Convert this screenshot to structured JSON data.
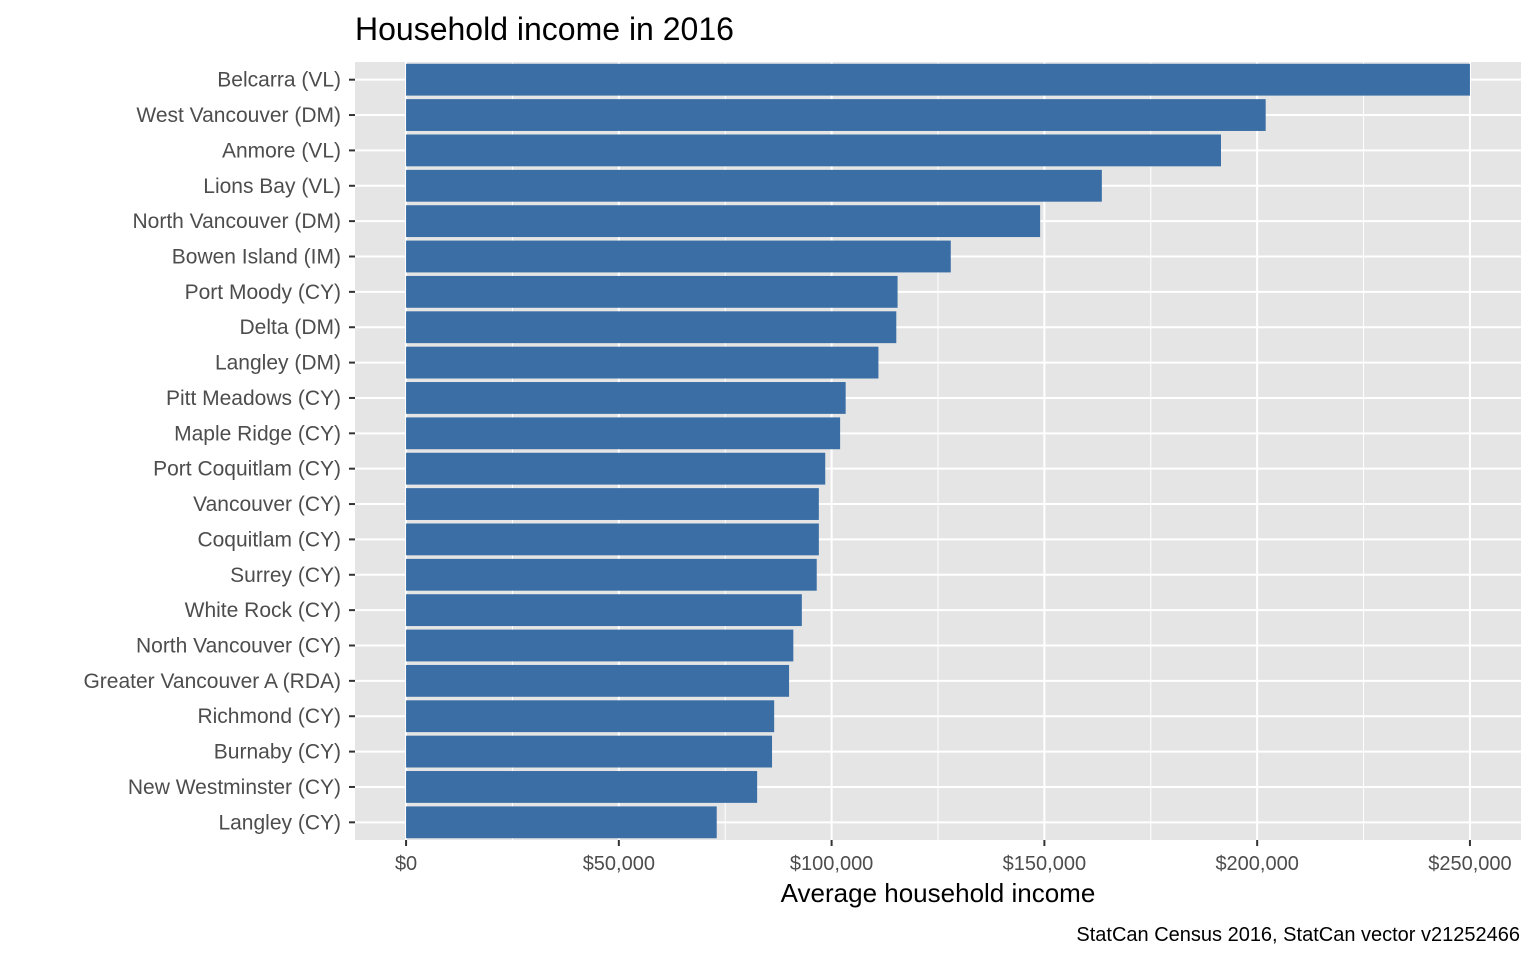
{
  "chart_data": {
    "type": "bar",
    "orientation": "horizontal",
    "title": "Household income in 2016",
    "xlabel": "Average household income",
    "ylabel": "",
    "caption": "StatCan Census 2016, StatCan vector v21252466",
    "xlim": [
      -12000,
      262000
    ],
    "x_ticks": [
      0,
      50000,
      100000,
      150000,
      200000,
      250000
    ],
    "x_tick_labels": [
      "$0",
      "$50,000",
      "$100,000",
      "$150,000",
      "$200,000",
      "$250,000"
    ],
    "grid": true,
    "legend": "none",
    "bar_color": "#3a6ea5",
    "panel_color": "#e5e5e5",
    "categories": [
      "Belcarra (VL)",
      "West Vancouver (DM)",
      "Anmore (VL)",
      "Lions Bay (VL)",
      "North Vancouver (DM)",
      "Bowen Island (IM)",
      "Port Moody (CY)",
      "Delta (DM)",
      "Langley (DM)",
      "Pitt Meadows (CY)",
      "Maple Ridge (CY)",
      "Port Coquitlam (CY)",
      "Vancouver (CY)",
      "Coquitlam (CY)",
      "Surrey (CY)",
      "White Rock (CY)",
      "North Vancouver (CY)",
      "Greater Vancouver A (RDA)",
      "Richmond (CY)",
      "Burnaby (CY)",
      "New Westminster (CY)",
      "Langley (CY)"
    ],
    "values": [
      250000,
      202000,
      191500,
      163500,
      149000,
      128000,
      115500,
      115200,
      111000,
      103300,
      102000,
      98500,
      97000,
      97000,
      96500,
      93000,
      91000,
      90000,
      86500,
      86000,
      82500,
      73000
    ]
  }
}
